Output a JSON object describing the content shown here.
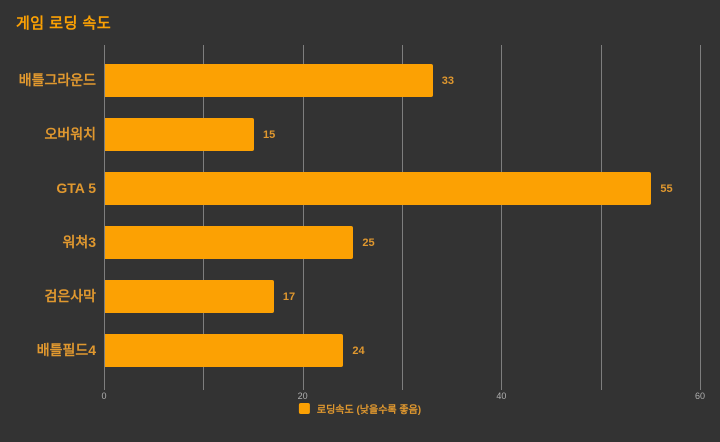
{
  "chart_data": {
    "type": "bar",
    "orientation": "horizontal",
    "title": "게임 로딩 속도",
    "categories": [
      "배틀그라운드",
      "오버워치",
      "GTA 5",
      "워쳐3",
      "검은사막",
      "배틀필드4"
    ],
    "values": [
      33,
      15,
      55,
      25,
      17,
      24
    ],
    "xlim": [
      0,
      60
    ],
    "x_ticks": [
      0,
      10,
      20,
      30,
      40,
      50,
      60
    ],
    "x_tick_labels": [
      "0",
      "",
      "20",
      "",
      "40",
      "",
      "60"
    ],
    "grid": true,
    "legend_position": "bottom",
    "legend": [
      {
        "label": "로딩속도 (낮을수록 좋음)",
        "color": "#FCA103"
      }
    ],
    "colors": {
      "background": "#333333",
      "bar": "#FCA103",
      "title": "#FCA103",
      "label": "#E0982F",
      "grid": "#7E7E7E",
      "tick_label": "#B0B0B0"
    }
  }
}
